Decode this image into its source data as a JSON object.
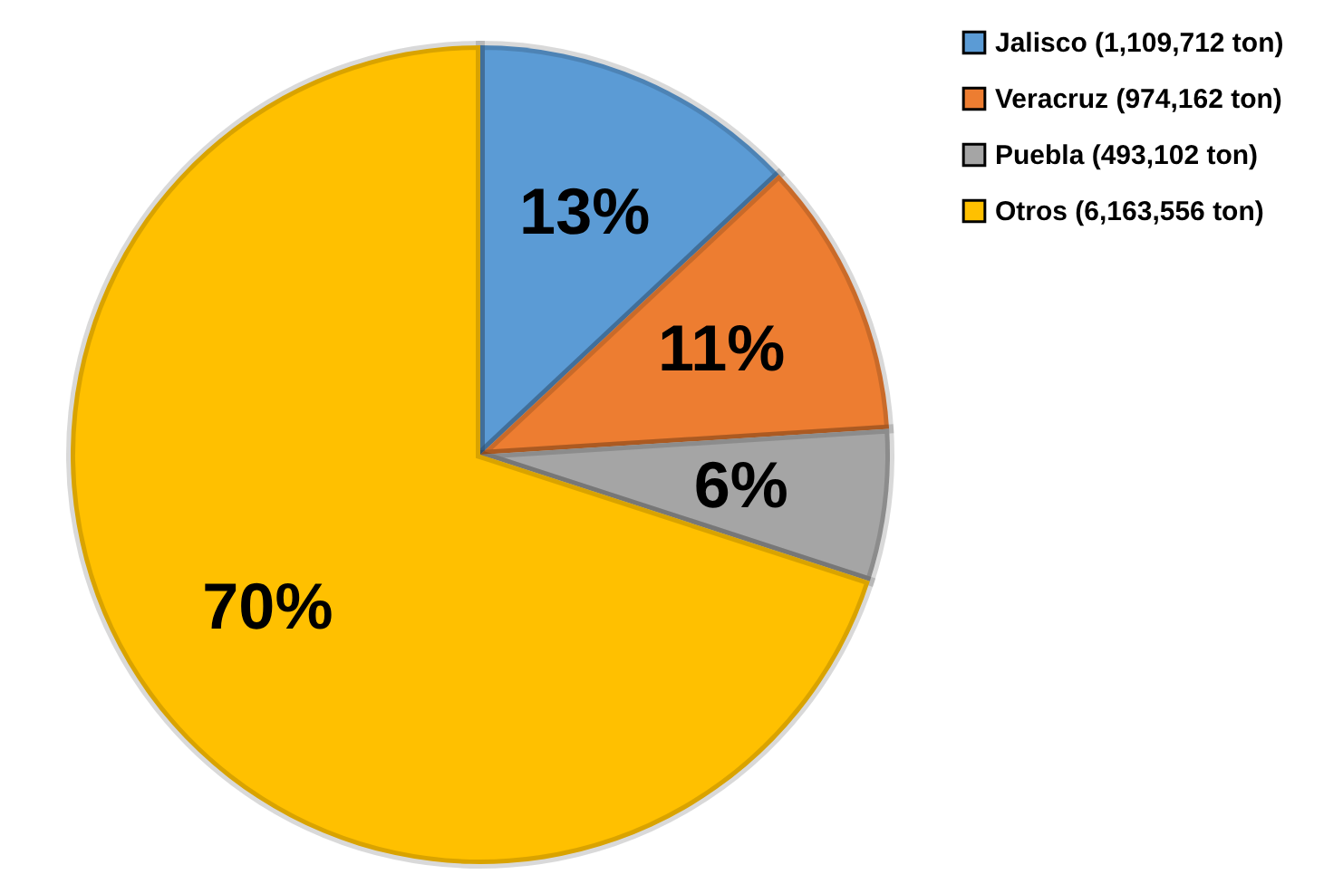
{
  "chart_data": {
    "type": "pie",
    "categories": [
      "Jalisco (1,109,712 ton)",
      "Veracruz (974,162 ton)",
      "Puebla (493,102 ton)",
      "Otros (6,163,556 ton)"
    ],
    "values": [
      13,
      11,
      6,
      70
    ],
    "colors": [
      "#5b9bd5",
      "#ed7d31",
      "#a5a5a5",
      "#ffc000"
    ],
    "value_labels": [
      "13%",
      "11%",
      "6%",
      "70%"
    ],
    "legend": "right"
  }
}
